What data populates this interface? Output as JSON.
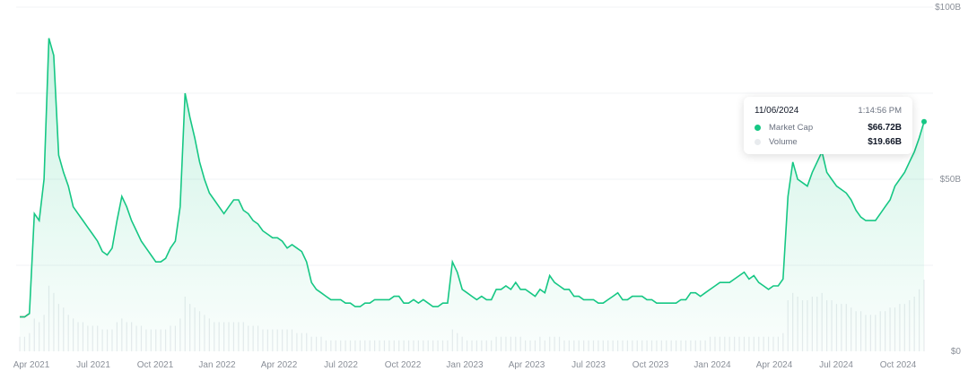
{
  "chart_data": {
    "type": "area",
    "x_axis_labels": [
      "Apr 2021",
      "Jul 2021",
      "Oct 2021",
      "Jan 2022",
      "Apr 2022",
      "Jul 2022",
      "Oct 2022",
      "Jan 2023",
      "Apr 2023",
      "Jul 2023",
      "Oct 2023",
      "Jan 2024",
      "Apr 2024",
      "Jul 2024",
      "Oct 2024"
    ],
    "y_axis_labels": [
      "$0",
      "$50B",
      "$100B"
    ],
    "ylim": [
      0,
      100
    ],
    "y_unit": "B",
    "grid": true,
    "series": [
      {
        "name": "Market Cap",
        "color": "#16c784",
        "values": [
          10,
          10,
          11,
          40,
          38,
          50,
          91,
          86,
          57,
          52,
          48,
          42,
          40,
          38,
          36,
          34,
          32,
          29,
          28,
          30,
          38,
          45,
          42,
          38,
          35,
          32,
          30,
          28,
          26,
          26,
          27,
          30,
          32,
          42,
          75,
          68,
          62,
          55,
          50,
          46,
          44,
          42,
          40,
          42,
          44,
          44,
          41,
          40,
          38,
          37,
          35,
          34,
          33,
          33,
          32,
          30,
          31,
          30,
          29,
          26,
          20,
          18,
          17,
          16,
          15,
          15,
          15,
          14,
          14,
          13,
          13,
          14,
          14,
          15,
          15,
          15,
          15,
          16,
          16,
          14,
          14,
          15,
          14,
          15,
          14,
          13,
          13,
          14,
          14,
          26,
          23,
          18,
          17,
          16,
          15,
          16,
          15,
          15,
          18,
          18,
          19,
          18,
          20,
          18,
          18,
          17,
          16,
          18,
          17,
          22,
          20,
          19,
          18,
          18,
          16,
          16,
          15,
          15,
          15,
          14,
          14,
          15,
          16,
          17,
          15,
          15,
          16,
          16,
          16,
          15,
          15,
          14,
          14,
          14,
          14,
          14,
          15,
          15,
          17,
          17,
          16,
          17,
          18,
          19,
          20,
          20,
          20,
          21,
          22,
          23,
          21,
          22,
          20,
          19,
          18,
          19,
          19,
          21,
          45,
          55,
          50,
          49,
          48,
          52,
          55,
          58,
          52,
          50,
          48,
          47,
          46,
          44,
          41,
          39,
          38,
          38,
          38,
          40,
          42,
          44,
          48,
          50,
          52,
          55,
          58,
          62,
          66.72
        ]
      },
      {
        "name": "Volume",
        "color": "#e8ebee",
        "values": [
          4,
          4,
          5,
          9,
          8,
          10,
          18,
          16,
          13,
          12,
          10,
          9,
          8,
          8,
          7,
          7,
          7,
          6,
          6,
          6,
          8,
          9,
          8,
          8,
          7,
          7,
          6,
          6,
          6,
          6,
          6,
          7,
          7,
          9,
          15,
          13,
          12,
          11,
          10,
          9,
          8,
          8,
          8,
          8,
          8,
          8,
          8,
          7,
          7,
          7,
          6,
          6,
          6,
          6,
          6,
          6,
          6,
          5,
          5,
          5,
          4,
          4,
          4,
          3,
          3,
          3,
          3,
          3,
          3,
          3,
          3,
          3,
          3,
          3,
          3,
          3,
          3,
          3,
          3,
          3,
          3,
          3,
          3,
          3,
          3,
          3,
          3,
          3,
          3,
          6,
          5,
          4,
          3,
          3,
          3,
          3,
          3,
          3,
          4,
          4,
          4,
          4,
          4,
          4,
          3,
          3,
          3,
          4,
          3,
          4,
          4,
          4,
          3,
          3,
          3,
          3,
          3,
          3,
          3,
          3,
          3,
          3,
          3,
          3,
          3,
          3,
          3,
          3,
          3,
          3,
          3,
          3,
          3,
          3,
          3,
          3,
          3,
          3,
          3,
          3,
          3,
          3,
          4,
          4,
          4,
          4,
          4,
          4,
          4,
          4,
          4,
          4,
          4,
          4,
          4,
          4,
          4,
          5,
          14,
          16,
          15,
          14,
          14,
          15,
          15,
          16,
          14,
          14,
          13,
          13,
          13,
          12,
          11,
          11,
          10,
          10,
          10,
          11,
          11,
          12,
          12,
          13,
          13,
          14,
          15,
          17,
          19.66
        ]
      }
    ],
    "tooltip": {
      "date": "11/06/2024",
      "time": "1:14:56 PM",
      "rows": [
        {
          "label": "Market Cap",
          "value": "$66.72B",
          "color": "#16c784"
        },
        {
          "label": "Volume",
          "value": "$19.66B",
          "color": "#e8ebee"
        }
      ]
    },
    "colors": {
      "down": "#ea3943",
      "grid": "#f1f3f5",
      "area_top": "#16c784"
    }
  }
}
